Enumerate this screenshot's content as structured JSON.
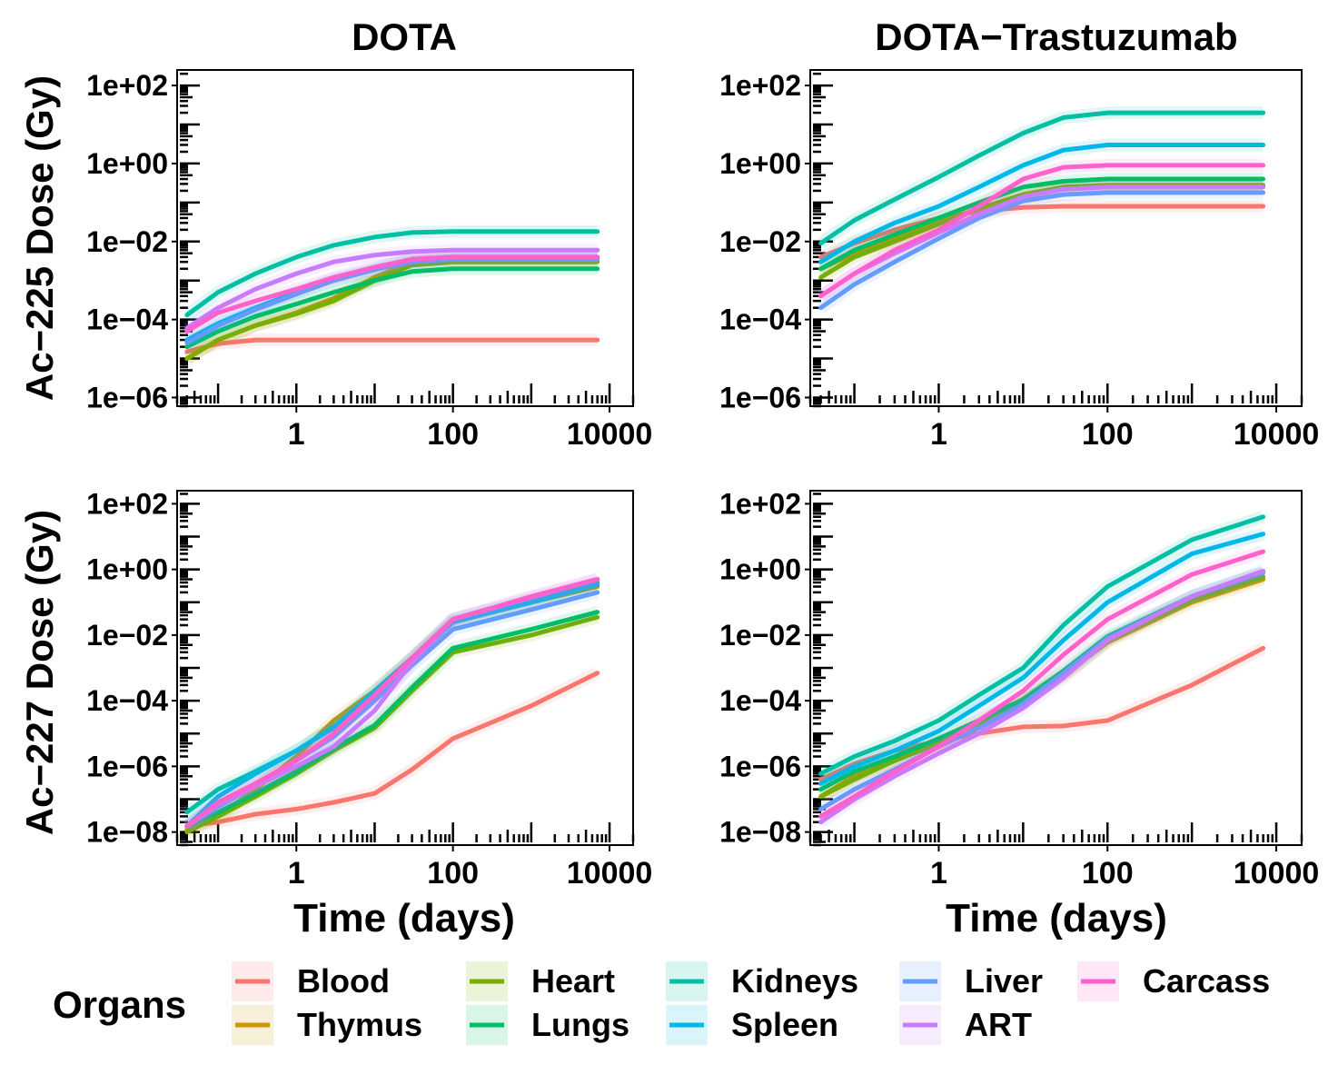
{
  "figure": {
    "column_titles": [
      "DOTA",
      "DOTA−Trastuzumab"
    ],
    "row_ylabels": [
      "Ac−225 Dose (Gy)",
      "Ac−227 Dose (Gy)"
    ],
    "xlabel": "Time (days)",
    "legend_title": "Organs"
  },
  "legend": {
    "position": "bottom",
    "items": [
      {
        "name": "Blood",
        "color": "#F8766D"
      },
      {
        "name": "Thymus",
        "color": "#CD9600"
      },
      {
        "name": "Heart",
        "color": "#7CAE00"
      },
      {
        "name": "Lungs",
        "color": "#00BE67"
      },
      {
        "name": "Kidneys",
        "color": "#00BFA4"
      },
      {
        "name": "Spleen",
        "color": "#00B8E7"
      },
      {
        "name": "Liver",
        "color": "#619CFF"
      },
      {
        "name": "ART",
        "color": "#C77CFF"
      },
      {
        "name": "Carcass",
        "color": "#FF61CC"
      }
    ]
  },
  "chart_data": [
    {
      "type": "line",
      "panel": "DOTA / Ac-225",
      "title": "DOTA",
      "ylabel": "Ac−225 Dose (Gy)",
      "xlabel": "",
      "x_scale": "log",
      "y_scale": "log",
      "xlim": [
        0.03,
        20000
      ],
      "ylim": [
        6e-07,
        250
      ],
      "x_ticks": [
        "1",
        "100",
        "10000"
      ],
      "y_ticks": [
        "1e−06",
        "1e−04",
        "1e−02",
        "1e+00",
        "1e+02"
      ],
      "x": [
        0.04,
        0.1,
        0.3,
        1,
        3,
        10,
        30,
        100,
        1000,
        7000
      ],
      "series": [
        {
          "name": "Blood",
          "values": [
            1.5e-05,
            2.4e-05,
            3e-05,
            3e-05,
            3e-05,
            3e-05,
            3e-05,
            3e-05,
            3e-05,
            3e-05
          ]
        },
        {
          "name": "Thymus",
          "values": [
            1e-05,
            3e-05,
            7e-05,
            0.00015,
            0.00035,
            0.0012,
            0.003,
            0.0035,
            0.0035,
            0.0035
          ]
        },
        {
          "name": "Heart",
          "values": [
            1e-05,
            3e-05,
            7e-05,
            0.00014,
            0.0003,
            0.001,
            0.0025,
            0.003,
            0.003,
            0.003
          ]
        },
        {
          "name": "Lungs",
          "values": [
            2e-05,
            5e-05,
            0.00012,
            0.00025,
            0.0005,
            0.001,
            0.0017,
            0.002,
            0.002,
            0.002
          ]
        },
        {
          "name": "Kidneys",
          "values": [
            0.00013,
            0.0005,
            0.0015,
            0.004,
            0.008,
            0.013,
            0.017,
            0.018,
            0.018,
            0.018
          ]
        },
        {
          "name": "Spleen",
          "values": [
            3e-05,
            8e-05,
            0.0002,
            0.0005,
            0.0011,
            0.002,
            0.0035,
            0.004,
            0.004,
            0.004
          ]
        },
        {
          "name": "Liver",
          "values": [
            2.5e-05,
            7e-05,
            0.00018,
            0.00045,
            0.001,
            0.0019,
            0.003,
            0.0035,
            0.0035,
            0.0035
          ]
        },
        {
          "name": "ART",
          "values": [
            6e-05,
            0.0002,
            0.0006,
            0.0015,
            0.003,
            0.0045,
            0.0055,
            0.006,
            0.006,
            0.006
          ]
        },
        {
          "name": "Carcass",
          "values": [
            5e-05,
            0.00015,
            0.0003,
            0.0006,
            0.0012,
            0.0022,
            0.0035,
            0.004,
            0.004,
            0.004
          ]
        }
      ]
    },
    {
      "type": "line",
      "panel": "DOTA-Trastuzumab / Ac-225",
      "title": "DOTA−Trastuzumab",
      "ylabel": "",
      "xlabel": "",
      "x_scale": "log",
      "y_scale": "log",
      "xlim": [
        0.03,
        20000
      ],
      "ylim": [
        6e-07,
        250
      ],
      "x_ticks": [
        "1",
        "100",
        "10000"
      ],
      "y_ticks": [
        "1e−06",
        "1e−04",
        "1e−02",
        "1e+00",
        "1e+02"
      ],
      "x": [
        0.04,
        0.1,
        0.3,
        1,
        3,
        10,
        30,
        100,
        1000,
        7000
      ],
      "series": [
        {
          "name": "Blood",
          "values": [
            0.004,
            0.009,
            0.02,
            0.04,
            0.06,
            0.075,
            0.08,
            0.08,
            0.08,
            0.08
          ]
        },
        {
          "name": "Thymus",
          "values": [
            0.002,
            0.005,
            0.012,
            0.03,
            0.07,
            0.15,
            0.22,
            0.25,
            0.25,
            0.25
          ]
        },
        {
          "name": "Heart",
          "values": [
            0.0012,
            0.004,
            0.01,
            0.028,
            0.07,
            0.16,
            0.25,
            0.28,
            0.28,
            0.28
          ]
        },
        {
          "name": "Lungs",
          "values": [
            0.002,
            0.006,
            0.015,
            0.04,
            0.1,
            0.25,
            0.35,
            0.4,
            0.4,
            0.4
          ]
        },
        {
          "name": "Kidneys",
          "values": [
            0.009,
            0.035,
            0.12,
            0.45,
            1.6,
            6,
            15,
            20,
            20,
            20
          ]
        },
        {
          "name": "Spleen",
          "values": [
            0.003,
            0.01,
            0.03,
            0.08,
            0.25,
            0.9,
            2.2,
            3,
            3,
            3
          ]
        },
        {
          "name": "Liver",
          "values": [
            0.0002,
            0.0008,
            0.003,
            0.012,
            0.04,
            0.11,
            0.16,
            0.18,
            0.18,
            0.18
          ]
        },
        {
          "name": "ART",
          "values": [
            0.0004,
            0.0015,
            0.005,
            0.017,
            0.05,
            0.14,
            0.22,
            0.25,
            0.25,
            0.25
          ]
        },
        {
          "name": "Carcass",
          "values": [
            0.0004,
            0.0015,
            0.006,
            0.02,
            0.08,
            0.4,
            0.8,
            0.9,
            0.9,
            0.9
          ]
        }
      ]
    },
    {
      "type": "line",
      "panel": "DOTA / Ac-227",
      "title": "",
      "ylabel": "Ac−227 Dose (Gy)",
      "xlabel": "Time (days)",
      "x_scale": "log",
      "y_scale": "log",
      "xlim": [
        0.03,
        20000
      ],
      "ylim": [
        4e-09,
        250
      ],
      "x_ticks": [
        "1",
        "100",
        "10000"
      ],
      "y_ticks": [
        "1e−08",
        "1e−06",
        "1e−04",
        "1e−02",
        "1e+00",
        "1e+02"
      ],
      "x": [
        0.04,
        0.1,
        0.3,
        1,
        3,
        10,
        30,
        100,
        1000,
        7000
      ],
      "series": [
        {
          "name": "Blood",
          "values": [
            1.5e-08,
            2e-08,
            3.5e-08,
            5e-08,
            8e-08,
            1.5e-07,
            8e-07,
            7e-06,
            7e-05,
            0.0007
          ]
        },
        {
          "name": "Thymus",
          "values": [
            1.2e-08,
            3e-08,
            2e-07,
            2e-06,
            2.5e-05,
            0.0002,
            0.002,
            0.025,
            0.1,
            0.3
          ]
        },
        {
          "name": "Heart",
          "values": [
            1e-08,
            3e-08,
            1.2e-07,
            6e-07,
            3e-06,
            1.5e-05,
            0.0002,
            0.003,
            0.01,
            0.035
          ]
        },
        {
          "name": "Lungs",
          "values": [
            1.5e-08,
            4e-08,
            1.5e-07,
            7e-07,
            3.5e-06,
            1.8e-05,
            0.00025,
            0.004,
            0.015,
            0.05
          ]
        },
        {
          "name": "Kidneys",
          "values": [
            4e-08,
            2e-07,
            7e-07,
            3e-06,
            1.5e-05,
            0.0002,
            0.002,
            0.03,
            0.12,
            0.4
          ]
        },
        {
          "name": "Spleen",
          "values": [
            1.5e-08,
            1.2e-07,
            6e-07,
            3e-06,
            1.6e-05,
            0.00018,
            0.0018,
            0.025,
            0.1,
            0.35
          ]
        },
        {
          "name": "Liver",
          "values": [
            1.5e-08,
            6e-08,
            2.5e-07,
            1.5e-06,
            8e-06,
            0.0001,
            0.0012,
            0.015,
            0.06,
            0.2
          ]
        },
        {
          "name": "ART",
          "values": [
            1.5e-08,
            7e-08,
            2.5e-07,
            1e-06,
            4e-06,
            5e-05,
            0.0015,
            0.03,
            0.14,
            0.5
          ]
        },
        {
          "name": "Carcass",
          "values": [
            1.5e-08,
            8e-08,
            3e-07,
            1.5e-06,
            1e-05,
            0.00015,
            0.002,
            0.03,
            0.15,
            0.5
          ]
        }
      ]
    },
    {
      "type": "line",
      "panel": "DOTA-Trastuzumab / Ac-227",
      "title": "",
      "ylabel": "",
      "xlabel": "Time (days)",
      "x_scale": "log",
      "y_scale": "log",
      "xlim": [
        0.03,
        20000
      ],
      "ylim": [
        4e-09,
        250
      ],
      "x_ticks": [
        "1",
        "100",
        "10000"
      ],
      "y_ticks": [
        "1e−08",
        "1e−06",
        "1e−04",
        "1e−02",
        "1e+00",
        "1e+02"
      ],
      "x": [
        0.04,
        0.1,
        0.3,
        1,
        3,
        10,
        30,
        100,
        1000,
        7000
      ],
      "series": [
        {
          "name": "Blood",
          "values": [
            4e-07,
            1.2e-06,
            3e-06,
            6e-06,
            1e-05,
            1.6e-05,
            1.7e-05,
            2.5e-05,
            0.0003,
            0.004
          ]
        },
        {
          "name": "Thymus",
          "values": [
            1.2e-07,
            5e-07,
            1.5e-06,
            5e-06,
            2e-05,
            0.0001,
            0.0006,
            0.006,
            0.1,
            0.5
          ]
        },
        {
          "name": "Heart",
          "values": [
            1.2e-07,
            4e-07,
            1.5e-06,
            5e-06,
            1.8e-05,
            9e-05,
            0.0006,
            0.007,
            0.12,
            0.6
          ]
        },
        {
          "name": "Lungs",
          "values": [
            2e-07,
            7e-07,
            2e-06,
            7e-06,
            2.5e-05,
            0.00011,
            0.0008,
            0.009,
            0.15,
            0.8
          ]
        },
        {
          "name": "Kidneys",
          "values": [
            6e-07,
            2e-06,
            6e-06,
            2.5e-05,
            0.00015,
            0.001,
            0.02,
            0.3,
            8,
            40
          ]
        },
        {
          "name": "Spleen",
          "values": [
            3e-07,
            1e-06,
            3e-06,
            1.2e-05,
            7e-05,
            0.0005,
            0.007,
            0.1,
            3,
            12
          ]
        },
        {
          "name": "Liver",
          "values": [
            5e-08,
            2e-07,
            8e-07,
            4e-06,
            1.5e-05,
            8e-05,
            0.0007,
            0.008,
            0.15,
            0.8
          ]
        },
        {
          "name": "ART",
          "values": [
            2e-08,
            1e-07,
            5e-07,
            2.5e-06,
            1e-05,
            6e-05,
            0.0005,
            0.007,
            0.15,
            0.9
          ]
        },
        {
          "name": "Carcass",
          "values": [
            3e-08,
            1.2e-07,
            7e-07,
            4e-06,
            2.5e-05,
            0.0002,
            0.0025,
            0.03,
            0.7,
            3.5
          ]
        }
      ]
    }
  ]
}
